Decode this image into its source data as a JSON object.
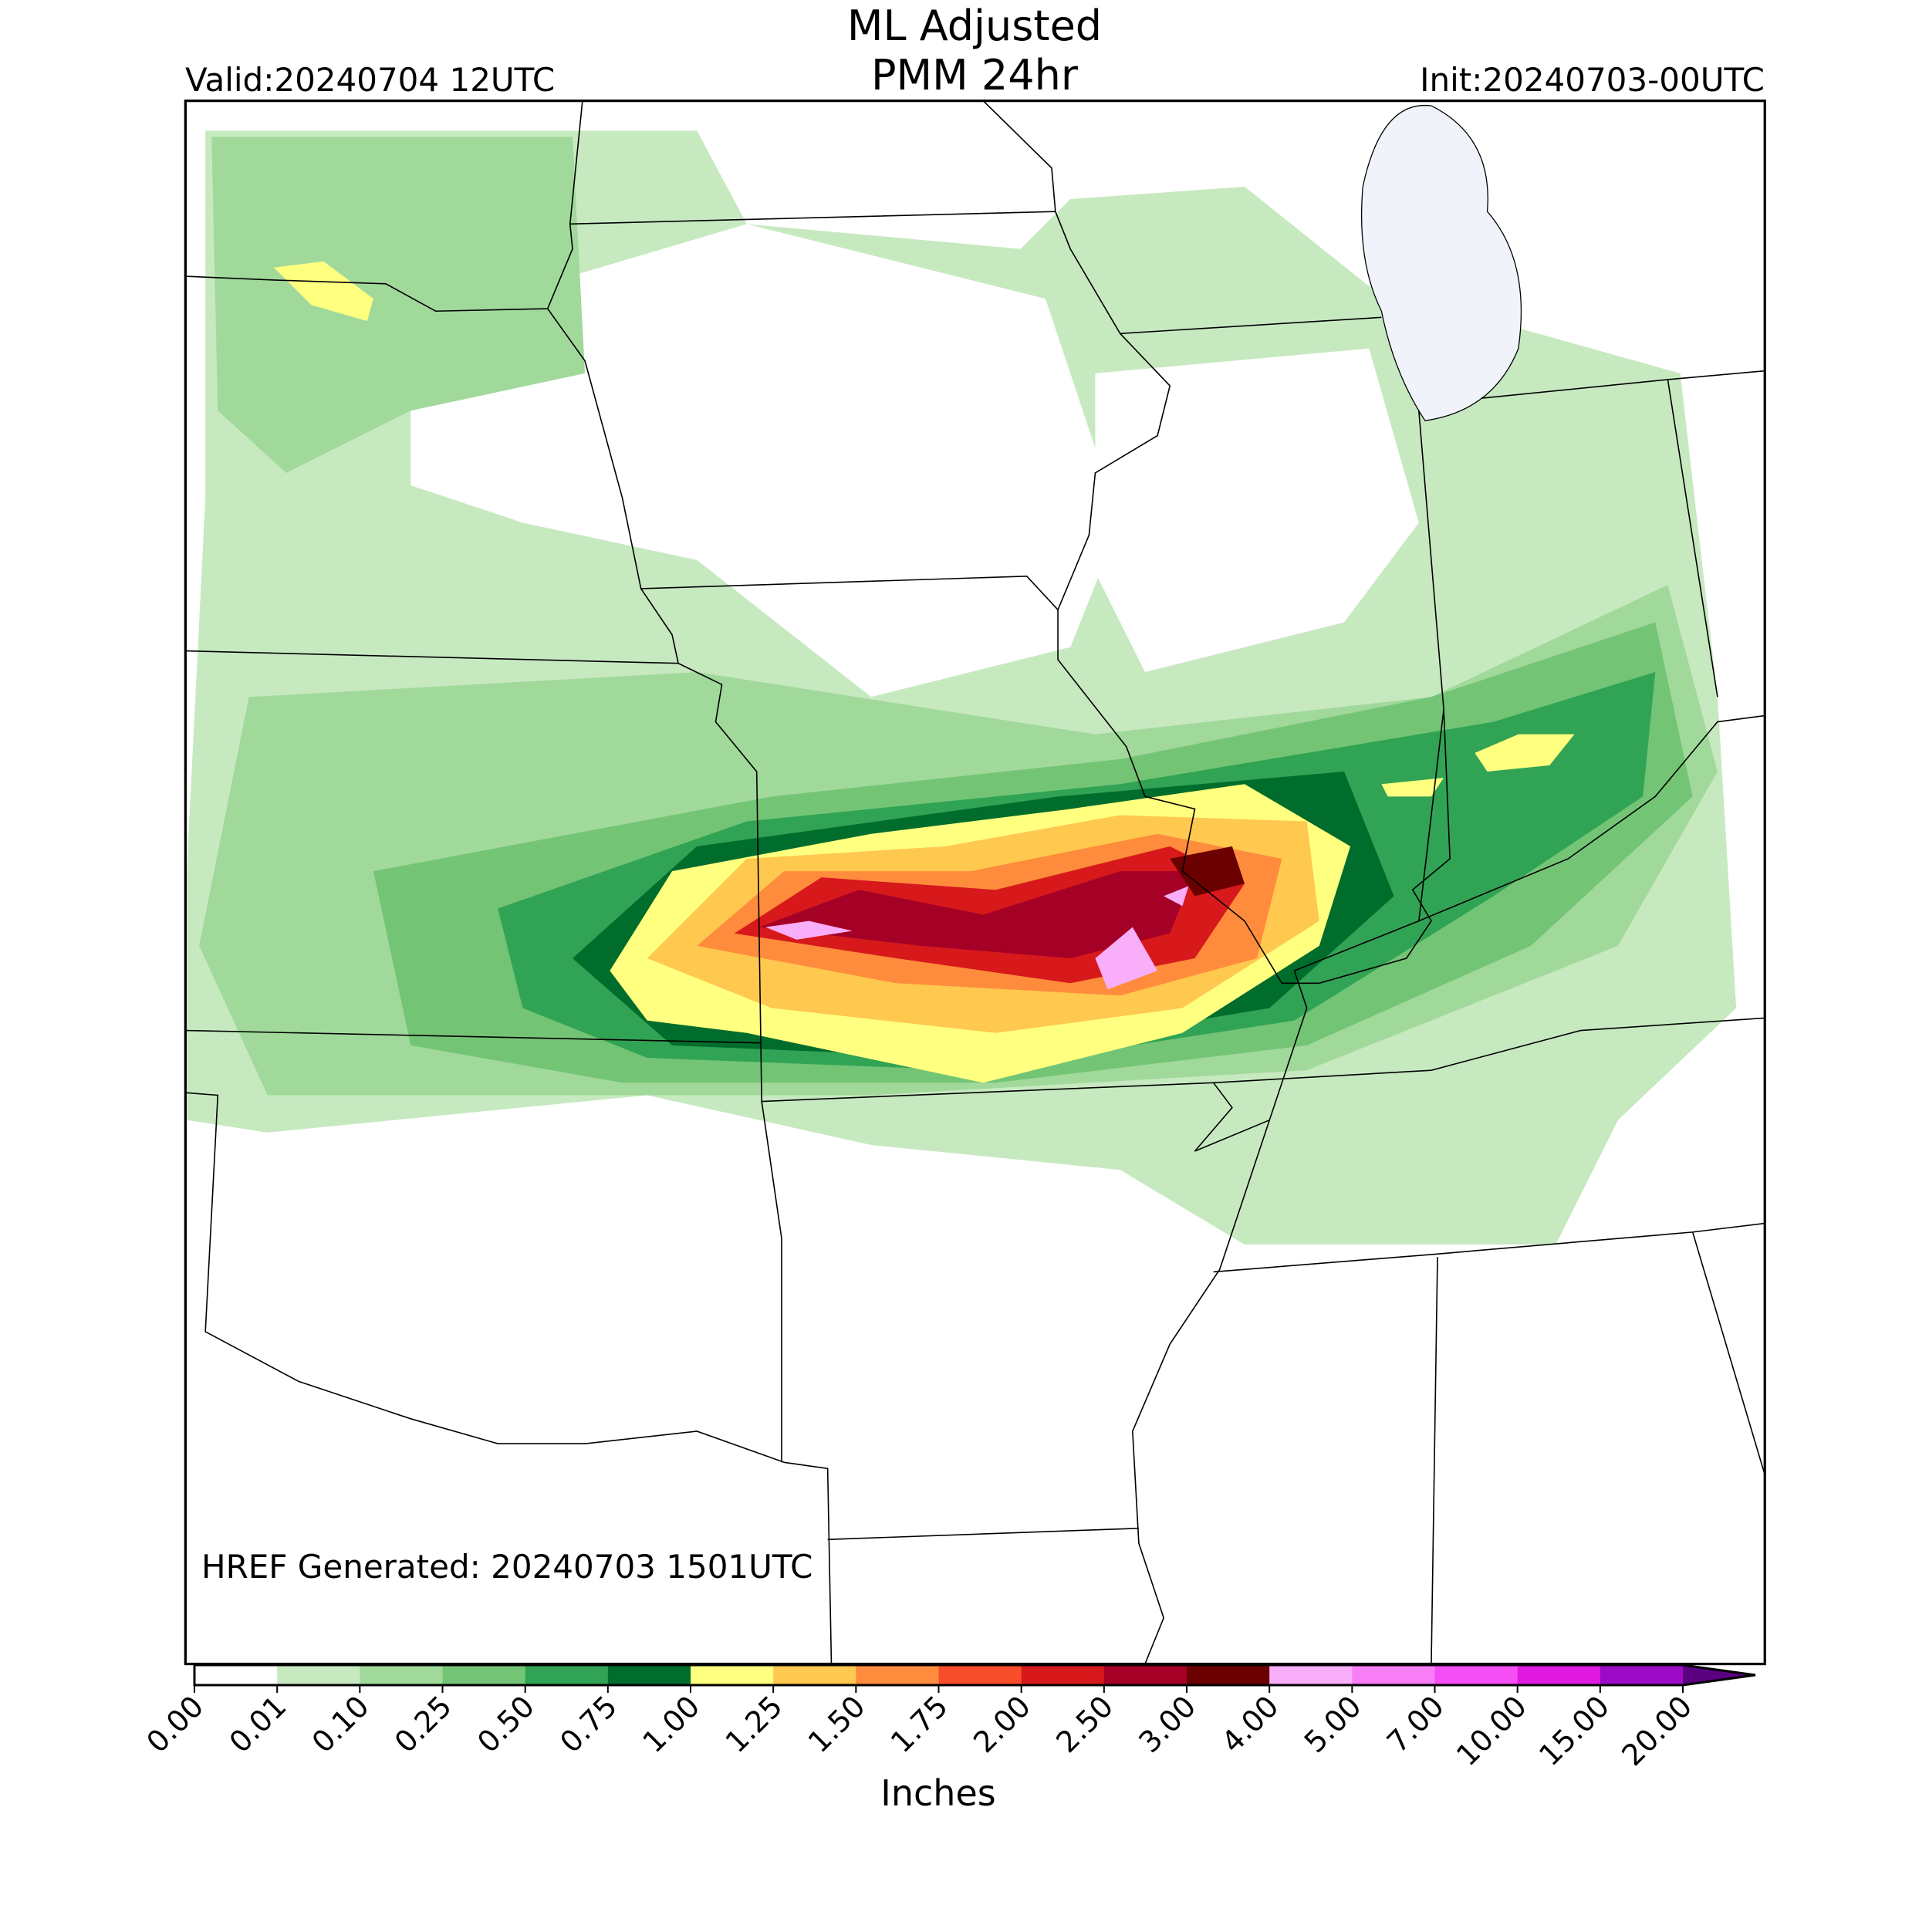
{
  "header": {
    "title": "ML Adjusted",
    "subtitle": "PMM 24hr",
    "valid": "Valid:20240704 12UTC",
    "init": "Init:20240703-00UTC"
  },
  "footnote": "HREF Generated: 20240703 1501UTC",
  "colorbar": {
    "label": "Inches",
    "ticks": [
      {
        "value": 0,
        "label": "0.00"
      },
      {
        "value": 0.01,
        "label": "0.01"
      },
      {
        "value": 0.1,
        "label": "0.10"
      },
      {
        "value": 0.25,
        "label": "0.25"
      },
      {
        "value": 0.5,
        "label": "0.50"
      },
      {
        "value": 0.75,
        "label": "0.75"
      },
      {
        "value": 1,
        "label": "1.00"
      },
      {
        "value": 1.25,
        "label": "1.25"
      },
      {
        "value": 1.5,
        "label": "1.50"
      },
      {
        "value": 1.75,
        "label": "1.75"
      },
      {
        "value": 2,
        "label": "2.00"
      },
      {
        "value": 2.5,
        "label": "2.50"
      },
      {
        "value": 3,
        "label": "3.00"
      },
      {
        "value": 4,
        "label": "4.00"
      },
      {
        "value": 5,
        "label": "5.00"
      },
      {
        "value": 7,
        "label": "7.00"
      },
      {
        "value": 10,
        "label": "10.00"
      },
      {
        "value": 15,
        "label": "15.00"
      },
      {
        "value": 20,
        "label": "20.00"
      }
    ],
    "colors": [
      "#ffffff",
      "#c7e9c0",
      "#a1d99b",
      "#74c476",
      "#31a354",
      "#006d2c",
      "#ffff80",
      "#ffc84f",
      "#ff8c3c",
      "#f84d2b",
      "#d7191c",
      "#a50026",
      "#6b0000",
      "#f9aef9",
      "#f77ef7",
      "#f54ef5",
      "#e11ae1",
      "#9c0ac8"
    ],
    "extend_color": "#5a0080"
  }
}
